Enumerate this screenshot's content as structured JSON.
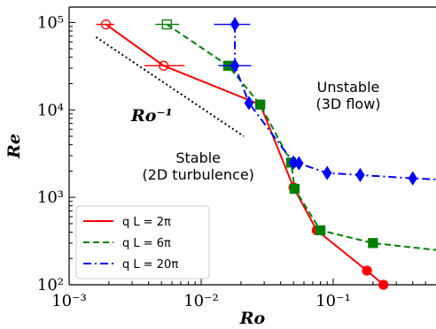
{
  "chart_data": {
    "type": "line",
    "title": "",
    "xlabel": "Ro",
    "ylabel": "Re",
    "xscale": "log",
    "yscale": "log",
    "xlim": [
      0.001,
      0.6
    ],
    "ylim": [
      100,
      150000
    ],
    "x_ticks": [
      "10⁻³",
      "10⁻²",
      "10⁻¹"
    ],
    "y_ticks": [
      "10²",
      "10³",
      "10⁴",
      "10⁵"
    ],
    "grid": false,
    "legend_position": "lower-left",
    "series": [
      {
        "name": "q L = 2π",
        "color": "#ff0000",
        "linestyle": "solid",
        "points": [
          {
            "x": 0.0019,
            "y": 95000,
            "marker": "circle-open",
            "xerr": [
              0.0016,
              0.0022
            ]
          },
          {
            "x": 0.0052,
            "y": 32000,
            "marker": "circle-open",
            "xerr": [
              0.0037,
              0.0075
            ]
          },
          {
            "x": 0.028,
            "y": 11500,
            "marker": "circle"
          },
          {
            "x": 0.05,
            "y": 1300,
            "marker": "circle"
          },
          {
            "x": 0.075,
            "y": 420,
            "marker": "circle"
          },
          {
            "x": 0.18,
            "y": 145,
            "marker": "circle"
          },
          {
            "x": 0.24,
            "y": 100,
            "marker": "circle"
          }
        ]
      },
      {
        "name": "q L = 6π",
        "color": "#008000",
        "linestyle": "dashed",
        "points": [
          {
            "x": 0.0055,
            "y": 95000,
            "marker": "square-open",
            "xerr": [
              0.0045,
              0.0068
            ]
          },
          {
            "x": 0.016,
            "y": 32000,
            "marker": "square",
            "xerr": [
              0.0135,
              0.019
            ]
          },
          {
            "x": 0.028,
            "y": 11500,
            "marker": "square"
          },
          {
            "x": 0.048,
            "y": 2500,
            "marker": "square"
          },
          {
            "x": 0.051,
            "y": 1250,
            "marker": "square"
          },
          {
            "x": 0.08,
            "y": 420,
            "marker": "square"
          },
          {
            "x": 0.2,
            "y": 300,
            "marker": "square"
          },
          {
            "x": 0.6,
            "y": 250,
            "marker": "none"
          }
        ]
      },
      {
        "name": "q L = 20π",
        "color": "#0000ff",
        "linestyle": "dashdot",
        "points": [
          {
            "x": 0.018,
            "y": 95000,
            "marker": "diamond",
            "xerr": [
              0.0125,
              0.0235
            ],
            "yerr": [
              77000,
              115000
            ]
          },
          {
            "x": 0.018,
            "y": 32000,
            "marker": "diamond",
            "xerr": [
              0.0135,
              0.024
            ]
          },
          {
            "x": 0.023,
            "y": 12000,
            "marker": "diamond"
          },
          {
            "x": 0.05,
            "y": 2500,
            "marker": "diamond"
          },
          {
            "x": 0.055,
            "y": 2450,
            "marker": "diamond"
          },
          {
            "x": 0.09,
            "y": 1900,
            "marker": "diamond"
          },
          {
            "x": 0.16,
            "y": 1800,
            "marker": "diamond"
          },
          {
            "x": 0.4,
            "y": 1650,
            "marker": "diamond"
          },
          {
            "x": 0.6,
            "y": 1600,
            "marker": "none"
          }
        ]
      }
    ],
    "reference_line": {
      "label": "Ro⁻¹",
      "color": "#000000",
      "linestyle": "dotted",
      "points": [
        {
          "x": 0.0016,
          "y": 68000
        },
        {
          "x": 0.021,
          "y": 5000
        }
      ]
    },
    "annotations": [
      {
        "text_lines": [
          "Unstable",
          "(3D flow)"
        ],
        "x": 0.13,
        "y": 16000
      },
      {
        "text_lines": [
          "Stable",
          "(2D turbulence)"
        ],
        "x": 0.0095,
        "y": 2500
      }
    ]
  }
}
